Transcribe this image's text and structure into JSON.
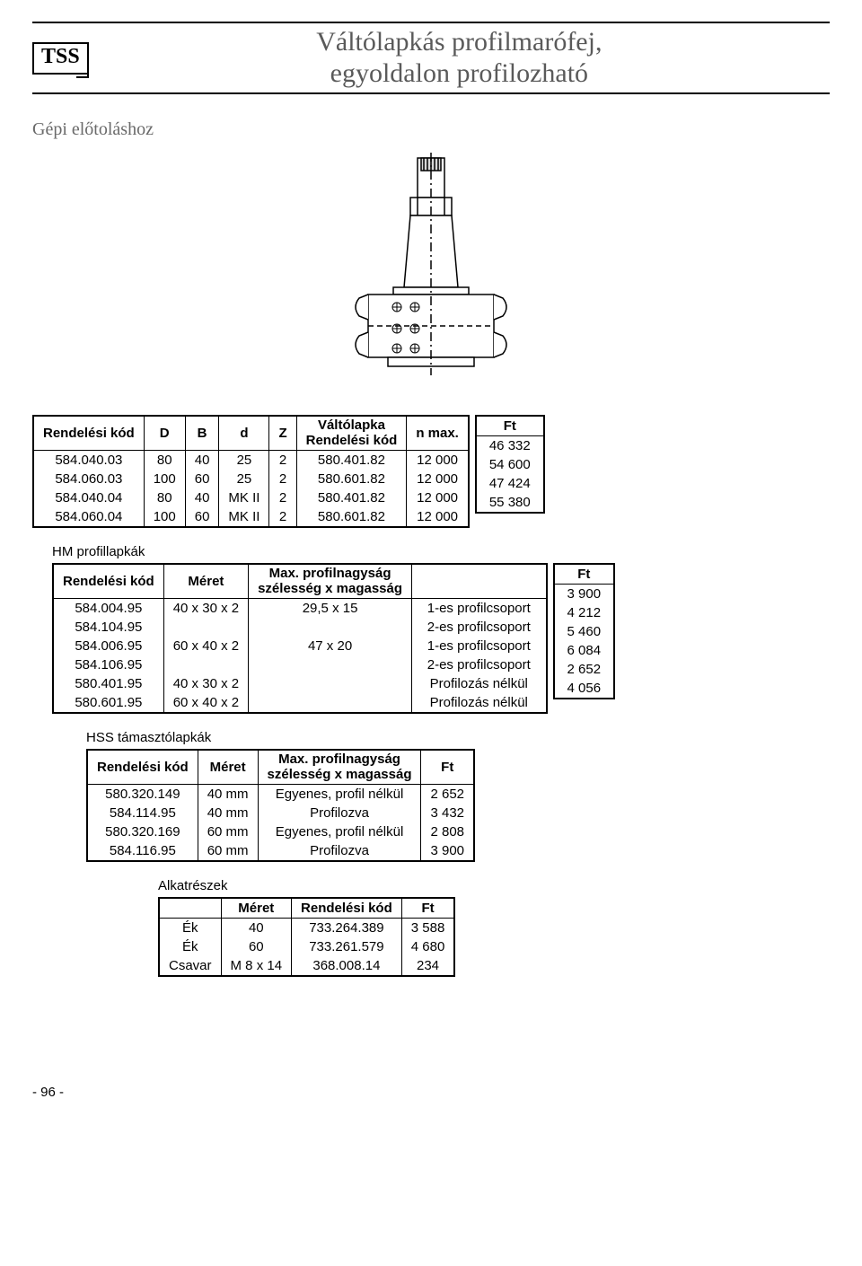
{
  "logo": "TSS",
  "title_line1": "Váltólapkás profilmarófej,",
  "title_line2": "egyoldalon profilozható",
  "subhead": "Gépi előtoláshoz",
  "table1": {
    "headers": [
      "Rendelési kód",
      "D",
      "B",
      "d",
      "Z",
      "Váltólapka\nRendelési kód",
      "n max."
    ],
    "ft_header": "Ft",
    "rows": [
      [
        "584.040.03",
        "80",
        "40",
        "25",
        "2",
        "580.401.82",
        "12 000"
      ],
      [
        "584.060.03",
        "100",
        "60",
        "25",
        "2",
        "580.601.82",
        "12 000"
      ],
      [
        "584.040.04",
        "80",
        "40",
        "MK II",
        "2",
        "580.401.82",
        "12 000"
      ],
      [
        "584.060.04",
        "100",
        "60",
        "MK II",
        "2",
        "580.601.82",
        "12 000"
      ]
    ],
    "ft": [
      "46 332",
      "54 600",
      "47 424",
      "55 380"
    ]
  },
  "table2": {
    "title": "HM profillapkák",
    "headers": [
      "Rendelési kód",
      "Méret",
      "Max. profilnagyság\nszélesség x magasság",
      ""
    ],
    "ft_header": "Ft",
    "rows": [
      [
        "584.004.95",
        "40 x 30 x 2",
        "29,5 x 15",
        "1-es profilcsoport"
      ],
      [
        "584.104.95",
        "",
        "",
        "2-es profilcsoport"
      ],
      [
        "584.006.95",
        "60 x 40 x 2",
        "47 x 20",
        "1-es profilcsoport"
      ],
      [
        "584.106.95",
        "",
        "",
        "2-es profilcsoport"
      ],
      [
        "580.401.95",
        "40 x 30 x 2",
        "",
        "Profilozás nélkül"
      ],
      [
        "580.601.95",
        "60 x 40 x 2",
        "",
        "Profilozás nélkül"
      ]
    ],
    "ft": [
      "3 900",
      "4 212",
      "5 460",
      "6 084",
      "2 652",
      "4 056"
    ]
  },
  "table3": {
    "title": "HSS támasztólapkák",
    "headers": [
      "Rendelési kód",
      "Méret",
      "Max. profilnagyság\nszélesség x magasság",
      "Ft"
    ],
    "rows": [
      [
        "580.320.149",
        "40 mm",
        "Egyenes, profil nélkül",
        "2 652"
      ],
      [
        "584.114.95",
        "40 mm",
        "Profilozva",
        "3 432"
      ],
      [
        "580.320.169",
        "60 mm",
        "Egyenes, profil nélkül",
        "2 808"
      ],
      [
        "584.116.95",
        "60 mm",
        "Profilozva",
        "3 900"
      ]
    ]
  },
  "table4": {
    "title": "Alkatrészek",
    "headers": [
      "",
      "Méret",
      "Rendelési kód",
      "Ft"
    ],
    "rows": [
      [
        "Ék",
        "40",
        "733.264.389",
        "3 588"
      ],
      [
        "Ék",
        "60",
        "733.261.579",
        "4 680"
      ],
      [
        "Csavar",
        "M 8 x 14",
        "368.008.14",
        "234"
      ]
    ]
  },
  "page_number": "- 96 -"
}
